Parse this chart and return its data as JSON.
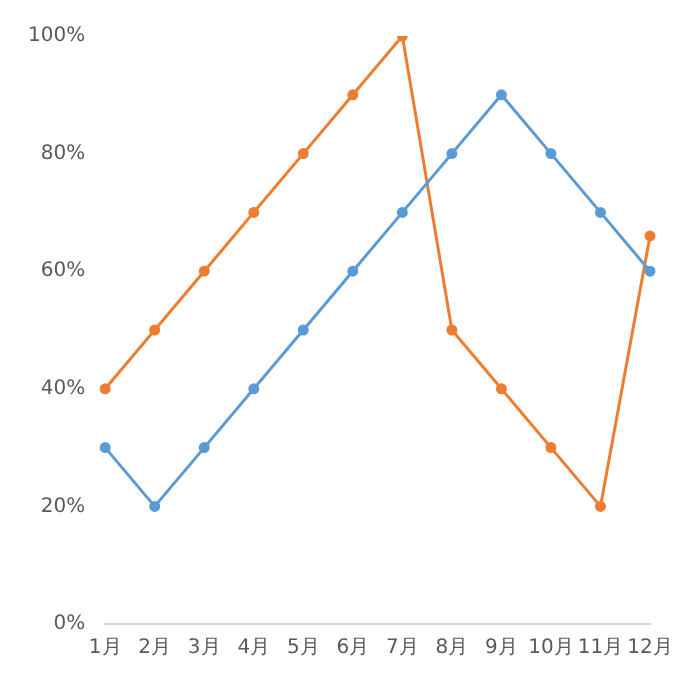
{
  "chart_data": {
    "type": "line",
    "categories": [
      "1月",
      "2月",
      "3月",
      "4月",
      "5月",
      "6月",
      "7月",
      "8月",
      "9月",
      "10月",
      "11月",
      "12月"
    ],
    "series": [
      {
        "color": "#5b9bd5",
        "values": [
          30,
          20,
          30,
          40,
          50,
          60,
          70,
          80,
          90,
          80,
          70,
          60
        ]
      },
      {
        "color": "#ed7d31",
        "values": [
          40,
          50,
          60,
          70,
          80,
          90,
          100,
          50,
          40,
          30,
          20,
          66
        ]
      }
    ],
    "ylim": [
      0,
      100
    ],
    "yticks": [
      {
        "value": 0,
        "label": "0%"
      },
      {
        "value": 20,
        "label": "20%"
      },
      {
        "value": 40,
        "label": "40%"
      },
      {
        "value": 60,
        "label": "60%"
      },
      {
        "value": 80,
        "label": "80%"
      },
      {
        "value": 100,
        "label": "100%"
      }
    ],
    "grid": false,
    "legend": false,
    "marker": "circle",
    "line_style": "solid"
  }
}
